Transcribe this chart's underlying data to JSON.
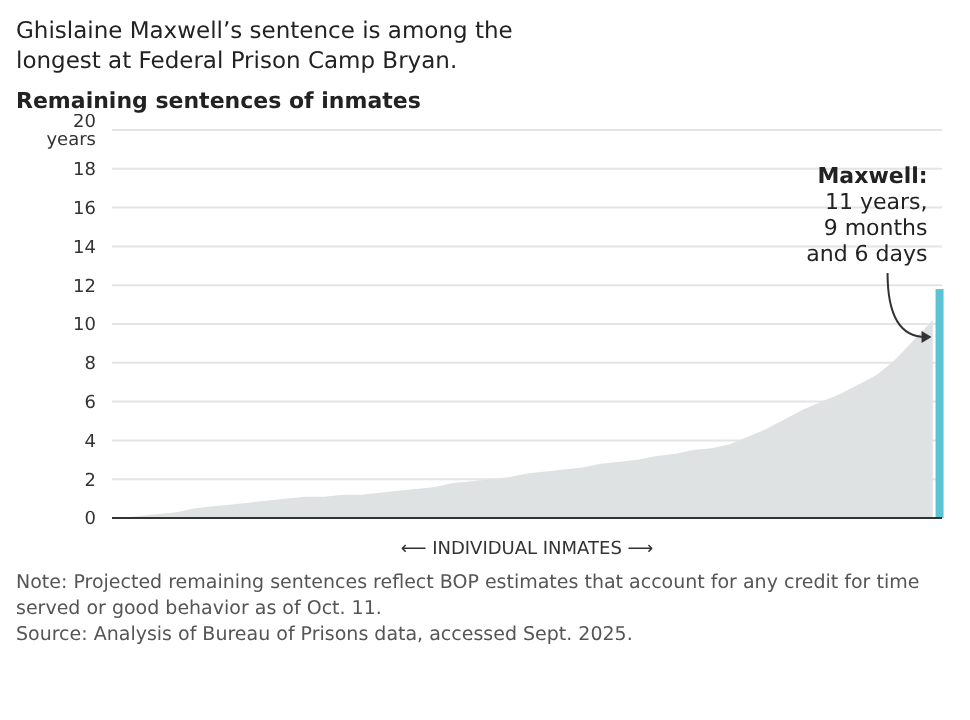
{
  "chart_data": {
    "type": "area",
    "title": "Ghislaine Maxwell’s sentence is among the longest at Federal Prison Camp Bryan.",
    "subtitle": "Remaining sentences of inmates",
    "xlabel": "⟵ INDIVIDUAL INMATES ⟶",
    "annotations": [
      "11 years, 9 months and 6 days",
      "Note: Projected remaining sentences reflect BOP estimates that account for any credit for time served or good behavior as of Oct. 11.",
      "Source: Analysis of Bureau of Prisons data, accessed Sept. 2025."
    ],
    "categories": [
      null,
      null,
      null,
      null,
      null,
      null,
      null,
      null,
      null,
      null,
      null,
      null,
      null,
      null,
      null,
      null,
      null,
      null,
      null,
      null,
      null,
      null,
      null,
      null,
      null,
      null,
      null,
      null,
      null,
      null,
      null,
      null,
      null,
      null,
      null,
      null,
      null,
      null,
      null,
      null,
      null,
      null,
      null,
      null,
      null
    ],
    "series": [
      {
        "color": "#dfe2e3",
        "values": [
          0,
          0.1,
          0.2,
          0.3,
          0.5,
          0.6,
          0.7,
          0.8,
          0.9,
          1.0,
          1.1,
          1.1,
          1.2,
          1.2,
          1.3,
          1.4,
          1.5,
          1.6,
          1.8,
          1.9,
          2.0,
          2.1,
          2.3,
          2.4,
          2.5,
          2.6,
          2.8,
          2.9,
          3.0,
          3.2,
          3.3,
          3.5,
          3.6,
          3.8,
          4.2,
          4.6,
          5.1,
          5.6,
          6.0,
          6.4,
          6.9,
          7.4,
          8.2,
          9.2,
          10.2
        ]
      },
      {
        "type": "bar",
        "name": "Maxwell:",
        "color": "#5bc4d4",
        "values": [
          null,
          null,
          null,
          null,
          null,
          null,
          null,
          null,
          null,
          null,
          null,
          null,
          null,
          null,
          null,
          null,
          null,
          null,
          null,
          null,
          null,
          null,
          null,
          null,
          null,
          null,
          null,
          null,
          null,
          null,
          null,
          null,
          null,
          null,
          null,
          null,
          null,
          null,
          null,
          null,
          null,
          null,
          null,
          null,
          11.8
        ]
      }
    ],
    "ylim": [
      0,
      20
    ],
    "yticks": [
      0,
      2,
      4,
      6,
      8,
      10,
      12,
      14,
      16,
      18,
      {
        "value": 20,
        "label": "20 years"
      }
    ],
    "grid": "y"
  }
}
